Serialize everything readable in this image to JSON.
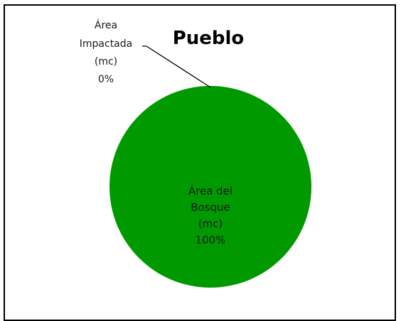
{
  "chart_data": {
    "type": "pie",
    "title": "Pueblo",
    "categories": [
      "Área del Bosque (mc)",
      "Área Impactada (mc)"
    ],
    "values": [
      100,
      0
    ],
    "percent_labels": [
      "100%",
      "0%"
    ],
    "label_lines": {
      "slice0": [
        "Área del",
        "Bosque",
        "(mc)",
        "100%"
      ],
      "slice1": [
        "Área",
        "Impactada",
        "(mc)",
        "0%"
      ]
    },
    "colors": [
      "#009900",
      "#c0504d"
    ],
    "legend": "none"
  }
}
